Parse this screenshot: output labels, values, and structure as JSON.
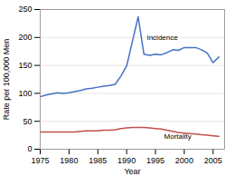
{
  "chart_data": {
    "type": "line",
    "xlabel": "Year",
    "ylabel": "Rate per 100,000 Men",
    "x": [
      1975,
      1976,
      1977,
      1978,
      1979,
      1980,
      1981,
      1982,
      1983,
      1984,
      1985,
      1986,
      1987,
      1988,
      1989,
      1990,
      1991,
      1992,
      1993,
      1994,
      1995,
      1996,
      1997,
      1998,
      1999,
      2000,
      2001,
      2002,
      2003,
      2004,
      2005,
      2006
    ],
    "series": [
      {
        "name": "Incidence",
        "color": "#4472c4",
        "values": [
          94,
          97,
          99,
          101,
          100,
          101,
          103,
          105,
          108,
          109,
          111,
          113,
          114,
          116,
          131,
          149,
          193,
          237,
          170,
          168,
          170,
          169,
          173,
          178,
          177,
          182,
          182,
          182,
          178,
          172,
          155,
          165
        ]
      },
      {
        "name": "Mortality",
        "color": "#c0504d",
        "values": [
          31,
          31,
          31,
          31,
          31,
          31,
          31,
          32,
          33,
          33,
          33,
          34,
          34,
          35,
          37,
          38,
          39,
          39,
          39,
          38,
          37,
          36,
          34,
          32,
          30,
          29,
          28,
          27,
          26,
          25,
          24,
          23
        ]
      }
    ],
    "annotations": [
      {
        "text": "Incidence",
        "x": 1993.5,
        "y": 195
      },
      {
        "text": "Mortality",
        "x": 1996.5,
        "y": 28
      }
    ],
    "xlim": [
      1975,
      2007
    ],
    "xticks": [
      1975,
      1980,
      1985,
      1990,
      1995,
      2000,
      2005
    ],
    "ylim": [
      0,
      250
    ],
    "yticks": [
      0,
      50,
      100,
      150,
      200,
      250
    ],
    "grid": true
  }
}
